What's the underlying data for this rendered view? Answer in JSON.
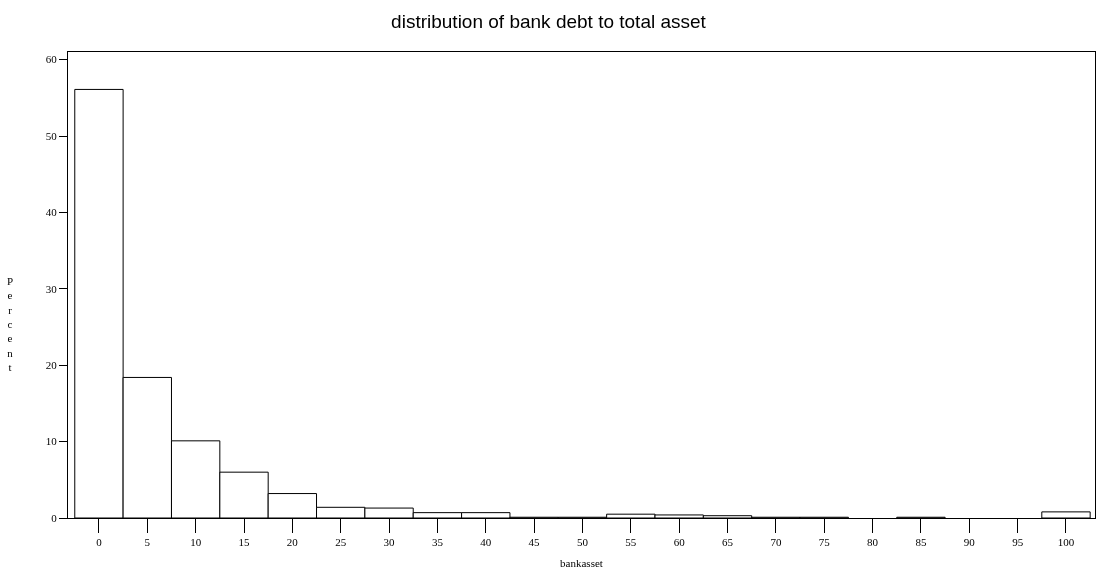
{
  "chart_data": {
    "type": "histogram",
    "title": "distribution of bank debt to total asset",
    "xlabel": "bankasset",
    "ylabel": "Percent",
    "bins": [
      -2.5,
      2.5,
      7.5,
      12.5,
      17.5,
      22.5,
      27.5,
      32.5,
      37.5,
      42.5,
      47.5,
      52.5,
      57.5,
      62.5,
      67.5,
      72.5,
      77.5,
      82.5,
      87.5,
      92.5,
      97.5,
      102.5
    ],
    "values": [
      56.1,
      18.4,
      10.1,
      6.0,
      3.2,
      1.4,
      1.3,
      0.7,
      0.7,
      0.1,
      0.1,
      0.5,
      0.4,
      0.3,
      0.1,
      0.1,
      0,
      0.1,
      0,
      0,
      0.8
    ],
    "color": "#ffffff",
    "xlim": [
      -3.2,
      103
    ],
    "xticks": [
      0,
      5,
      10,
      15,
      20,
      25,
      30,
      35,
      40,
      45,
      50,
      55,
      60,
      65,
      70,
      75,
      80,
      85,
      90,
      95,
      100
    ],
    "ylim": [
      0,
      61
    ],
    "yticks": [
      0,
      10,
      20,
      30,
      40,
      50,
      60
    ],
    "grid": false
  }
}
